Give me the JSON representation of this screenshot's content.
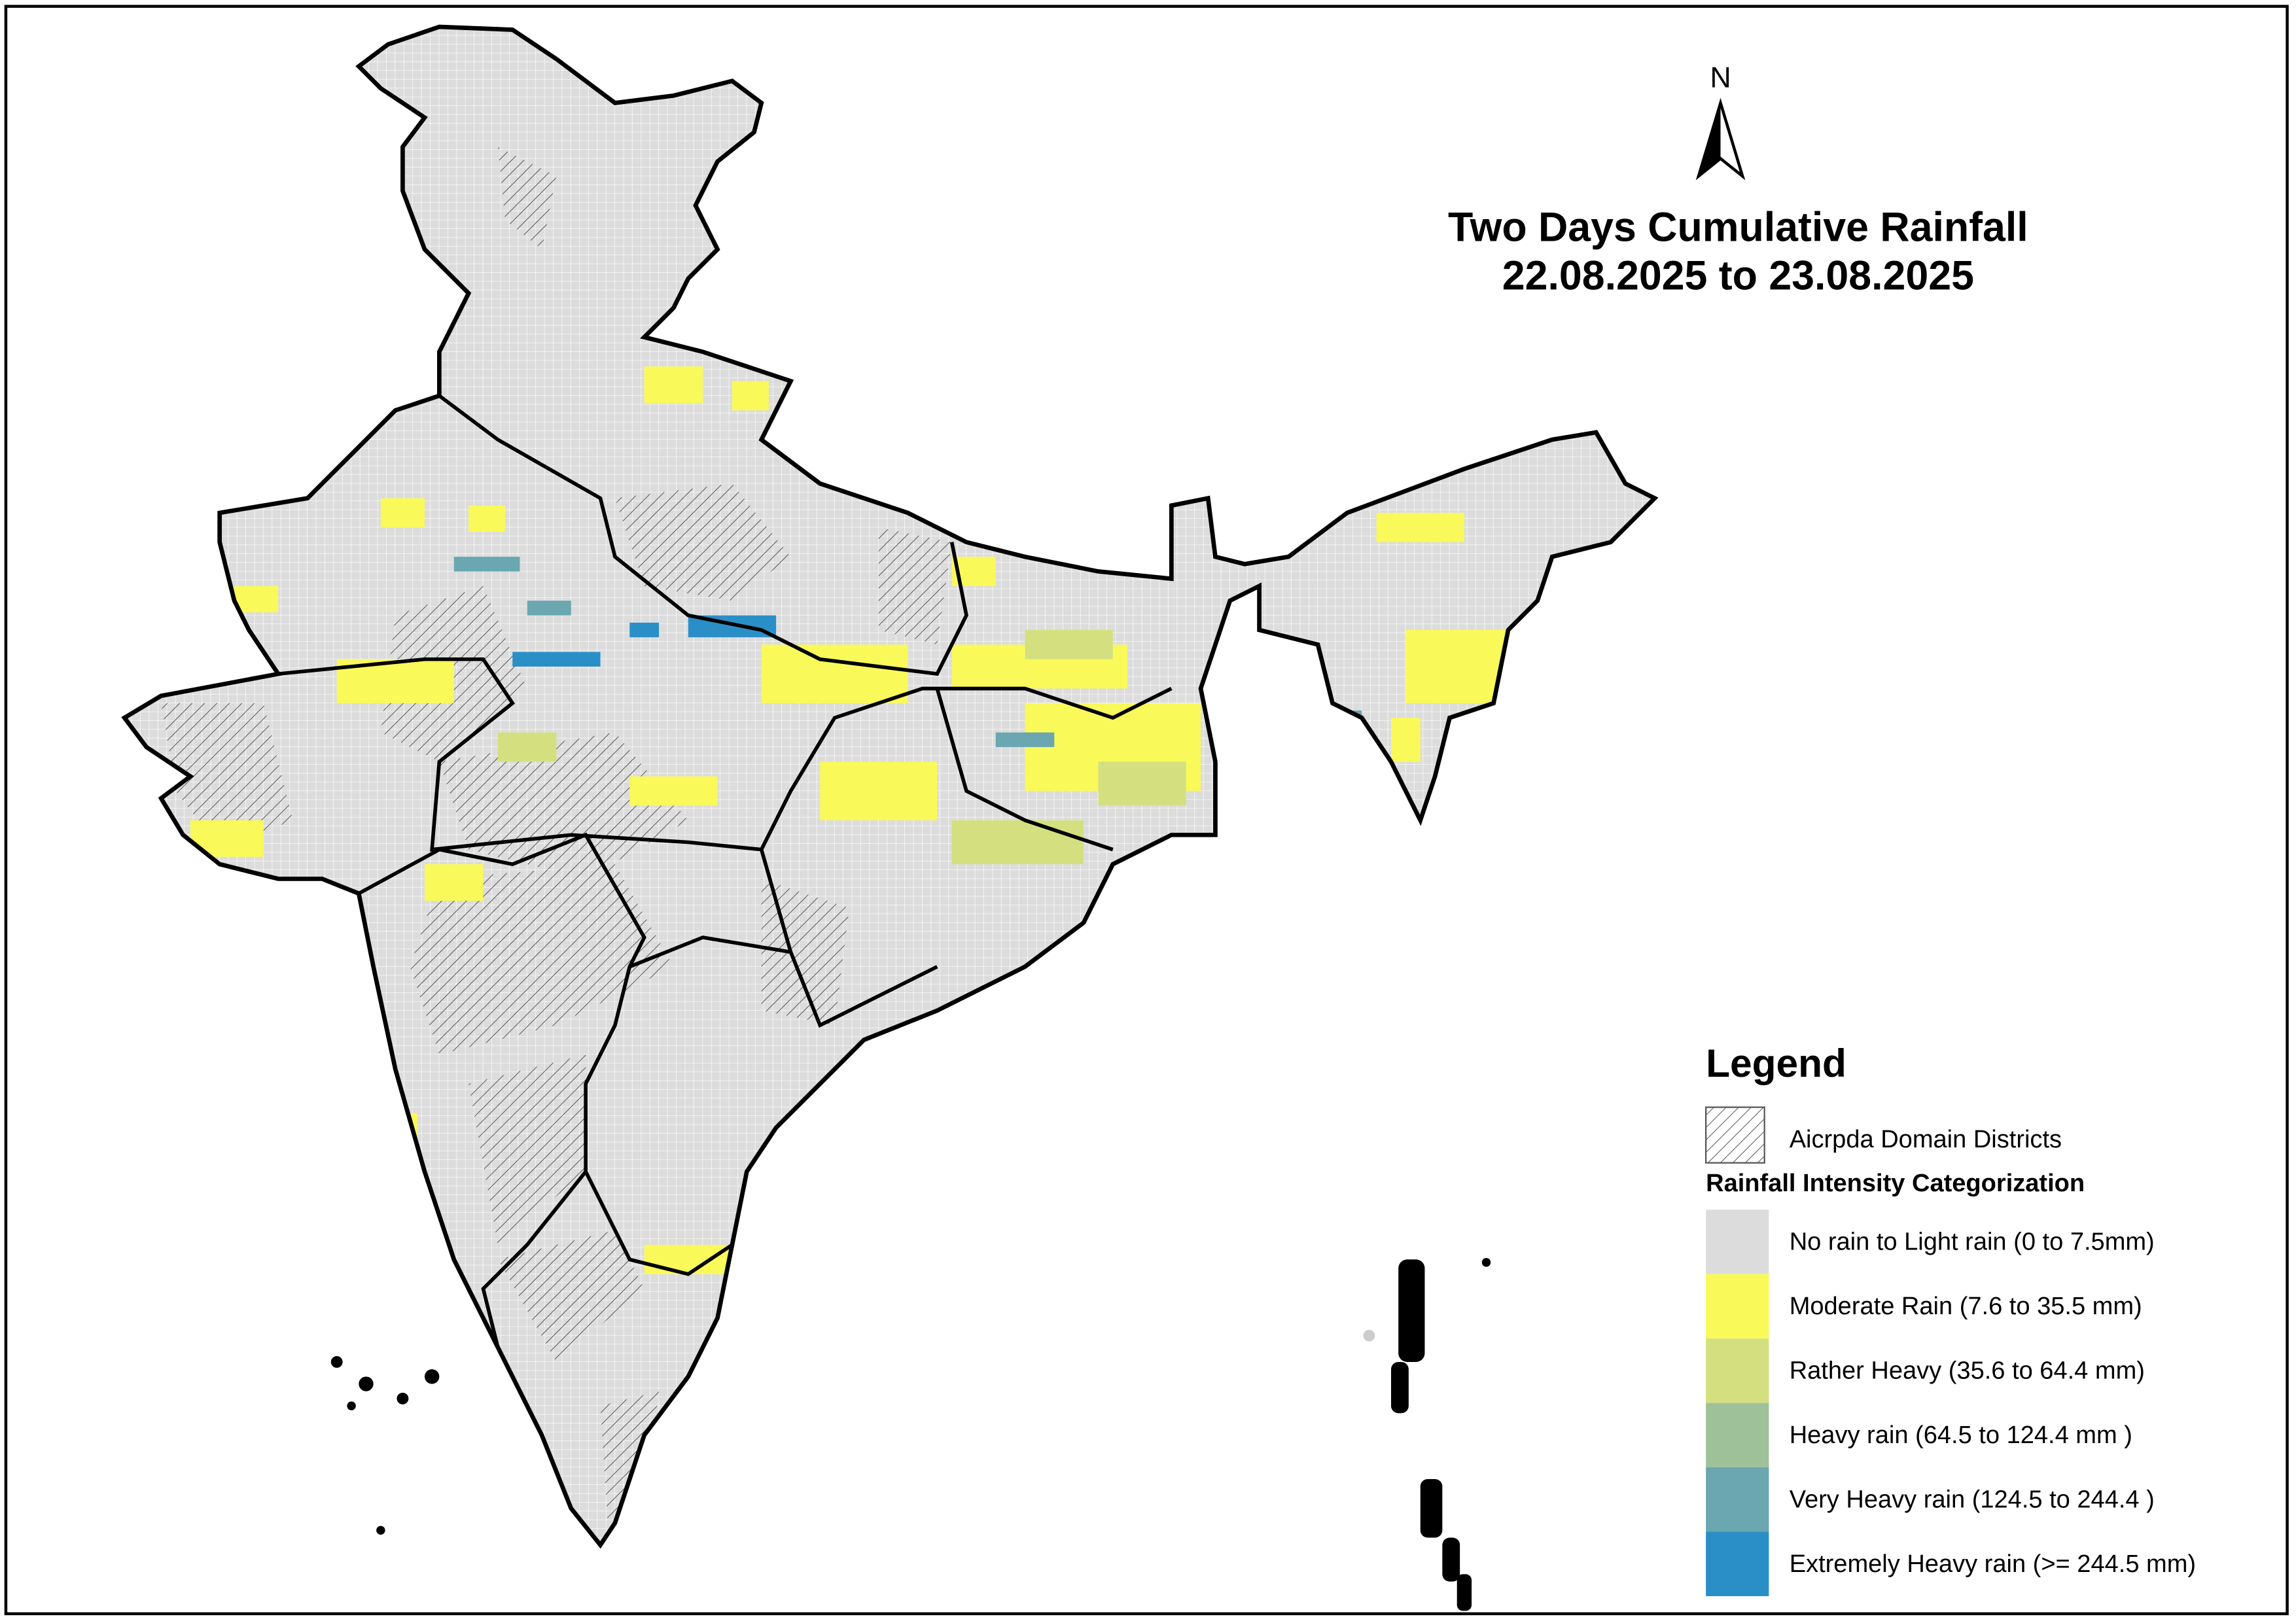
{
  "title": {
    "line1": "Two Days Cumulative Rainfall",
    "line2": "22.08.2025 to 23.08.2025"
  },
  "north_label": "N",
  "legend": {
    "title": "Legend",
    "hatch_label": "Aicrpda Domain Districts",
    "category_title": "Rainfall Intensity Categorization",
    "items": [
      {
        "label": "No rain to Light rain (0 to 7.5mm)",
        "color": "#dcdcdc"
      },
      {
        "label": "Moderate Rain (7.6 to 35.5 mm)",
        "color": "#f9f95a"
      },
      {
        "label": "Rather Heavy (35.6 to 64.4 mm)",
        "color": "#d4e07f"
      },
      {
        "label": "Heavy rain (64.5 to 124.4 mm )",
        "color": "#9fc19a"
      },
      {
        "label": "Very Heavy rain (124.5 to 244.4 )",
        "color": "#6aa7b0"
      },
      {
        "label": "Extremely Heavy rain  (>= 244.5 mm)",
        "color": "#2a8fc7"
      }
    ]
  }
}
